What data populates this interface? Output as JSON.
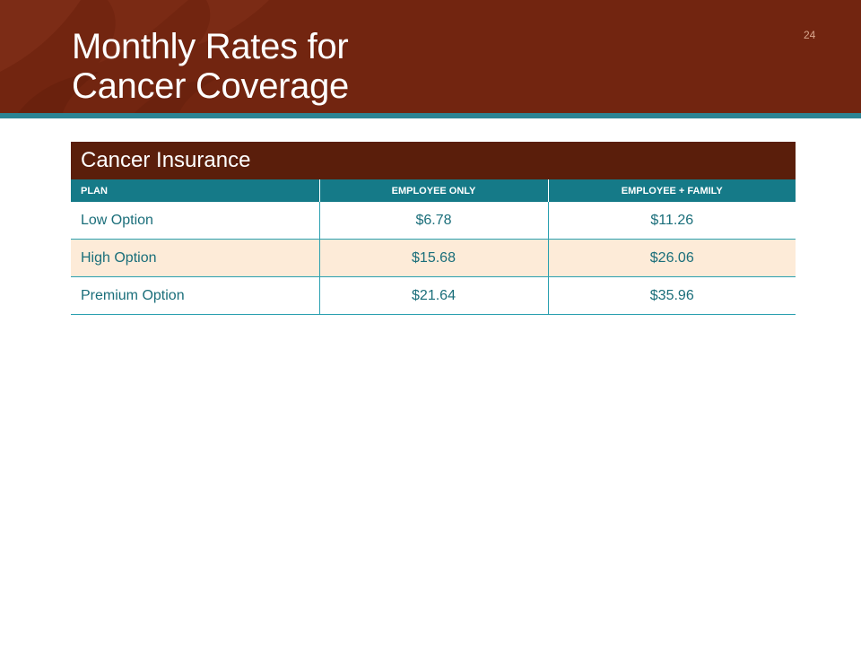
{
  "slide": {
    "title_line1": "Monthly Rates for",
    "title_line2": "Cancer Coverage",
    "page_number": "24"
  },
  "table": {
    "caption": "Cancer Insurance",
    "headers": [
      "PLAN",
      "EMPLOYEE ONLY",
      "EMPLOYEE + FAMILY"
    ],
    "rows": [
      {
        "plan": "Low Option",
        "employee_only": "$6.78",
        "employee_family": "$11.26"
      },
      {
        "plan": "High Option",
        "employee_only": "$15.68",
        "employee_family": "$26.06"
      },
      {
        "plan": "Premium Option",
        "employee_only": "$21.64",
        "employee_family": "$35.96"
      }
    ]
  },
  "colors": {
    "header_brown": "#722510",
    "caption_brown": "#5a1e0b",
    "teal": "#157a88",
    "stripe_teal": "#2b8494",
    "row_alt": "#fdebd8",
    "cell_text": "#1a6e7a"
  }
}
